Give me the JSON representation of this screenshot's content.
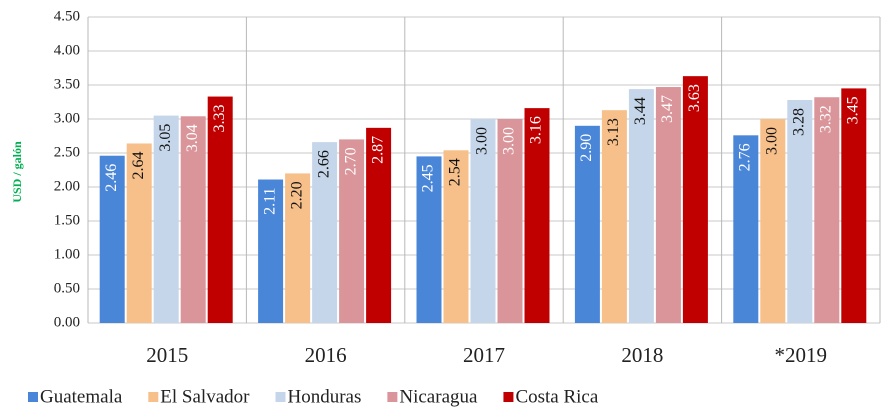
{
  "chart_data": {
    "type": "bar",
    "y_label": "USD / galón",
    "categories": [
      "2015",
      "2016",
      "2017",
      "2018",
      "*2019"
    ],
    "series": [
      {
        "name": "Guatemala",
        "color": "#4a86d8",
        "label_color": "#ffffff",
        "values": [
          2.46,
          2.11,
          2.45,
          2.9,
          2.76
        ],
        "value_labels": [
          "2.46",
          "2.11",
          "2.45",
          "2.90",
          "2.76"
        ]
      },
      {
        "name": "El Salvador",
        "color": "#f7c08a",
        "label_color": "#111111",
        "values": [
          2.64,
          2.2,
          2.54,
          3.13,
          3.0
        ],
        "value_labels": [
          "2.64",
          "2.20",
          "2.54",
          "3.13",
          "3.00"
        ]
      },
      {
        "name": "Honduras",
        "color": "#c6d6ea",
        "label_color": "#111111",
        "values": [
          3.05,
          2.66,
          3.0,
          3.44,
          3.28
        ],
        "value_labels": [
          "3.05",
          "2.66",
          "3.00",
          "3.44",
          "3.28"
        ]
      },
      {
        "name": "Nicaragua",
        "color": "#d9959a",
        "label_color": "#ffffff",
        "values": [
          3.04,
          2.7,
          3.0,
          3.47,
          3.32
        ],
        "value_labels": [
          "3.04",
          "2.70",
          "3.00",
          "3.47",
          "3.32"
        ]
      },
      {
        "name": "Costa Rica",
        "color": "#c00000",
        "label_color": "#ffffff",
        "values": [
          3.33,
          2.87,
          3.16,
          3.63,
          3.45
        ],
        "value_labels": [
          "3.33",
          "2.87",
          "3.16",
          "3.63",
          "3.45"
        ]
      }
    ],
    "ylim": [
      0,
      4.5
    ],
    "yticks": [
      {
        "value": 0,
        "label": "0.00"
      },
      {
        "value": 0.5,
        "label": "0.50"
      },
      {
        "value": 1,
        "label": "1.00"
      },
      {
        "value": 1.5,
        "label": "1.50"
      },
      {
        "value": 2,
        "label": "2.00"
      },
      {
        "value": 2.5,
        "label": "2.50"
      },
      {
        "value": 3,
        "label": "3.00"
      },
      {
        "value": 3.5,
        "label": "3.50"
      },
      {
        "value": 4,
        "label": "4.00"
      },
      {
        "value": 4.5,
        "label": "4.50"
      }
    ],
    "grid": true,
    "legend": "bottom"
  }
}
